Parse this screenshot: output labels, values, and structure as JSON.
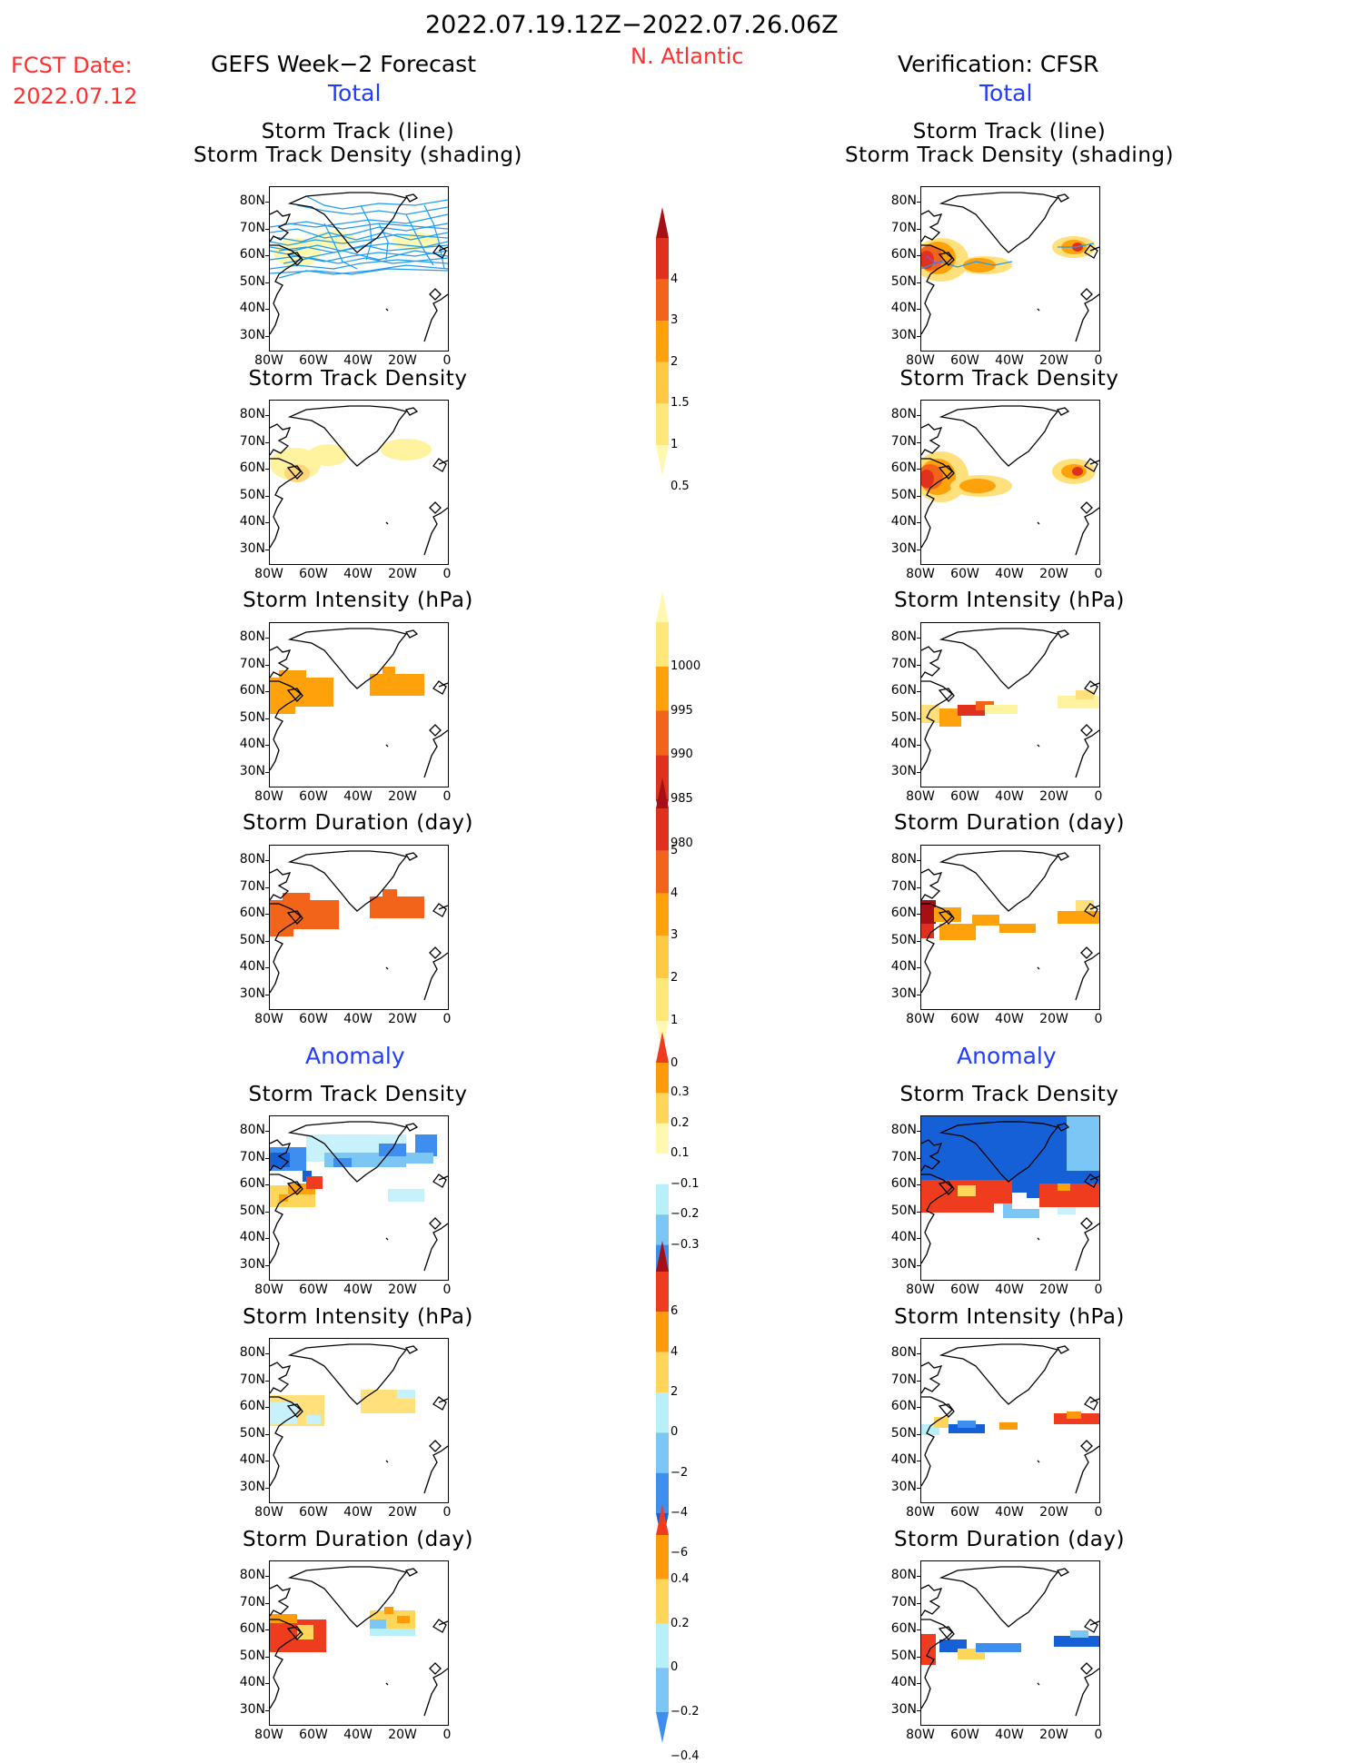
{
  "header": {
    "date_range": "2022.07.19.12Z−2022.07.26.06Z",
    "region": "N. Atlantic",
    "fcst_label": "FCST Date:",
    "fcst_date": "2022.07.12",
    "left_title": "GEFS Week−2 Forecast",
    "right_title": "Verification: CFSR",
    "total_label": "Total",
    "anomaly_label": "Anomaly"
  },
  "panel_titles": {
    "track_line": "Storm Track (line)",
    "track_density_shading": "Storm Track Density (shading)",
    "track_density": "Storm Track Density",
    "intensity": "Storm Intensity (hPa)",
    "duration": "Storm Duration (day)"
  },
  "axes": {
    "lat_ticks": [
      "80N",
      "70N",
      "60N",
      "50N",
      "40N",
      "30N"
    ],
    "lon_ticks": [
      "80W",
      "60W",
      "40W",
      "20W",
      "0"
    ]
  },
  "colorbars": {
    "density_total": {
      "labels": [
        "4",
        "3",
        "2",
        "1.5",
        "1",
        "0.5"
      ],
      "colors": [
        "#a50f15",
        "#e0301e",
        "#f26419",
        "#ffa10a",
        "#ffc845",
        "#ffe87a",
        "#fff8b0"
      ]
    },
    "intensity_total": {
      "labels": [
        "1000",
        "995",
        "990",
        "985",
        "980"
      ],
      "colors": [
        "#fff8b0",
        "#ffe87a",
        "#ffa10a",
        "#f26419",
        "#e0301e",
        "#a50f15"
      ]
    },
    "duration_total": {
      "labels": [
        "5",
        "4",
        "3",
        "2",
        "1",
        "0"
      ],
      "colors": [
        "#a50f15",
        "#e0301e",
        "#f26419",
        "#ffa10a",
        "#ffc845",
        "#ffe87a",
        "#fff8b0"
      ]
    },
    "density_anom": {
      "labels": [
        "0.3",
        "0.2",
        "0.1",
        "−0.1",
        "−0.2",
        "−0.3"
      ],
      "colors": [
        "#f03c1e",
        "#ff9a0a",
        "#ffd65a",
        "#fff8b0",
        "#ffffff",
        "#b8f0fa",
        "#7cc6f5",
        "#3e8ef0",
        "#1560d6"
      ]
    },
    "intensity_anom": {
      "labels": [
        "6",
        "4",
        "2",
        "0",
        "−2",
        "−4",
        "−6"
      ],
      "colors": [
        "#a50f15",
        "#f03c1e",
        "#ff9a0a",
        "#ffd65a",
        "#b8f0fa",
        "#7cc6f5",
        "#3e8ef0",
        "#1560d6"
      ]
    },
    "duration_anom": {
      "labels": [
        "0.4",
        "0.2",
        "0",
        "−0.2",
        "−0.4"
      ],
      "colors": [
        "#f03c1e",
        "#ff9a0a",
        "#ffd65a",
        "#b8f0fa",
        "#7cc6f5",
        "#3e8ef0"
      ]
    }
  },
  "colors": {
    "red_text": "#ff3030",
    "blue_text": "#1f3cff",
    "track_line": "#1e9cf0"
  }
}
